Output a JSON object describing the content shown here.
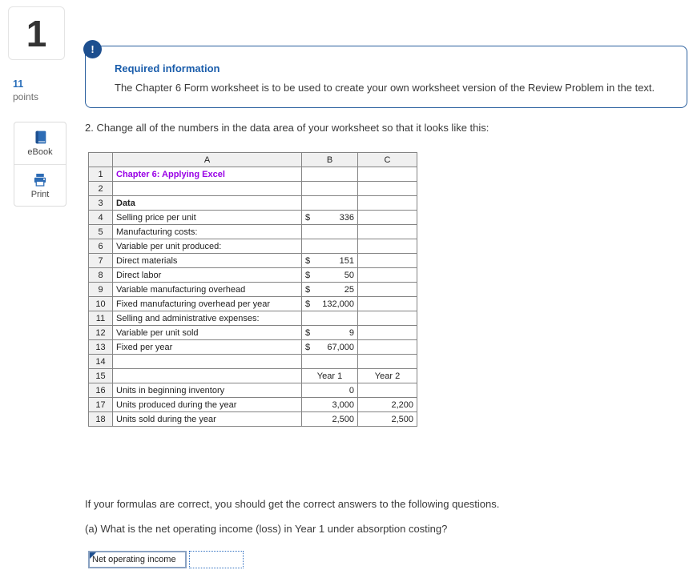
{
  "question": {
    "number": "1",
    "points_value": "11",
    "points_label": "points"
  },
  "tools": {
    "ebook_label": "eBook",
    "print_label": "Print"
  },
  "alert": {
    "badge": "!",
    "title": "Required information",
    "body": "The Chapter 6 Form worksheet is to be used to create your own worksheet version of the Review Problem in the text."
  },
  "instruction": "2. Change all of the numbers in the data area of your worksheet so that it looks like this:",
  "sheet": {
    "columns": [
      "A",
      "B",
      "C"
    ],
    "dollar_sign": "$",
    "rows": [
      {
        "n": "1",
        "a": {
          "text": "Chapter 6: Applying Excel",
          "style": "title"
        }
      },
      {
        "n": "2"
      },
      {
        "n": "3",
        "a": {
          "text": "Data",
          "style": "bold"
        }
      },
      {
        "n": "4",
        "a": {
          "text": "Selling price per unit"
        },
        "b": {
          "type": "money",
          "value": "336"
        }
      },
      {
        "n": "5",
        "a": {
          "text": "Manufacturing costs:"
        }
      },
      {
        "n": "6",
        "a": {
          "text": "Variable per unit produced:",
          "indent": 1
        }
      },
      {
        "n": "7",
        "a": {
          "text": "Direct materials",
          "indent": 2
        },
        "b": {
          "type": "money",
          "value": "151"
        }
      },
      {
        "n": "8",
        "a": {
          "text": "Direct labor",
          "indent": 2
        },
        "b": {
          "type": "money",
          "value": "50"
        }
      },
      {
        "n": "9",
        "a": {
          "text": "Variable manufacturing overhead",
          "indent": 2
        },
        "b": {
          "type": "money",
          "value": "25"
        }
      },
      {
        "n": "10",
        "a": {
          "text": "Fixed manufacturing overhead per year",
          "indent": 1
        },
        "b": {
          "type": "money",
          "value": "132,000"
        }
      },
      {
        "n": "11",
        "a": {
          "text": "Selling and administrative expenses:"
        }
      },
      {
        "n": "12",
        "a": {
          "text": "Variable per unit sold",
          "indent": 1
        },
        "b": {
          "type": "money",
          "value": "9"
        }
      },
      {
        "n": "13",
        "a": {
          "text": "Fixed per year",
          "indent": 1
        },
        "b": {
          "type": "money",
          "value": "67,000"
        }
      },
      {
        "n": "14"
      },
      {
        "n": "15",
        "b": {
          "type": "center",
          "value": "Year 1"
        },
        "c": {
          "type": "center",
          "value": "Year 2"
        }
      },
      {
        "n": "16",
        "a": {
          "text": "Units in beginning inventory"
        },
        "b": {
          "type": "num",
          "value": "0"
        }
      },
      {
        "n": "17",
        "a": {
          "text": "Units produced during the year"
        },
        "b": {
          "type": "num",
          "value": "3,000"
        },
        "c": {
          "type": "num",
          "value": "2,200"
        }
      },
      {
        "n": "18",
        "a": {
          "text": "Units sold during the year"
        },
        "b": {
          "type": "num",
          "value": "2,500"
        },
        "c": {
          "type": "num",
          "value": "2,500"
        }
      }
    ]
  },
  "followup": {
    "line1": "If your formulas are correct, you should get the correct answers to the following questions.",
    "line2": "(a) What is the net operating income (loss) in Year 1 under absorption costing?"
  },
  "answer": {
    "label": "Net operating income",
    "value": ""
  },
  "colors": {
    "accent_blue": "#2d6cb5",
    "navy_badge": "#1d4f8f",
    "alert_border": "#2a5f9e",
    "alert_title": "#1a5dab",
    "sheet_title_purple": "#9900e6",
    "grid_border": "#848484",
    "header_bg": "#f0f0f0"
  }
}
